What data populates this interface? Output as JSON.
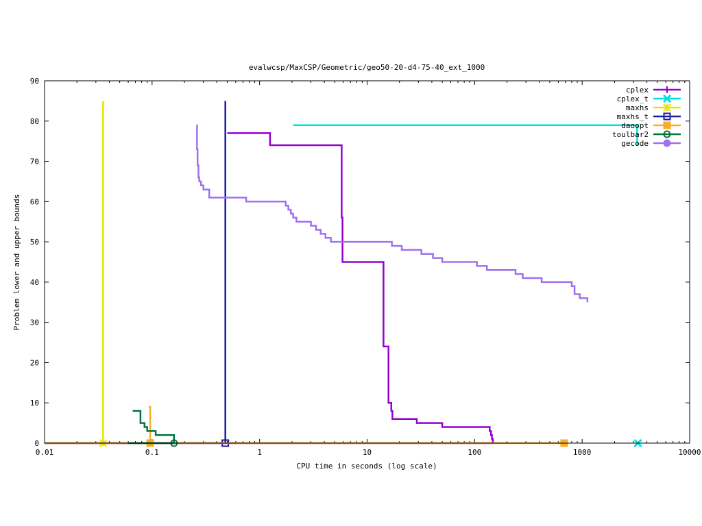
{
  "chart_data": {
    "type": "line",
    "title": "evalwcsp/MaxCSP/Geometric/geo50-20-d4-75-40_ext_1000",
    "xlabel": "CPU time in seconds (log scale)",
    "ylabel": "Problem lower and upper bounds",
    "x_scale": "log",
    "xlim": [
      0.01,
      10000
    ],
    "ylim": [
      0,
      90
    ],
    "x_ticks": [
      0.01,
      0.1,
      1,
      10,
      100,
      1000,
      10000
    ],
    "x_tick_labels": [
      "0.01",
      "0.1",
      "1",
      "10",
      "100",
      "1000",
      "10000"
    ],
    "y_ticks": [
      0,
      10,
      20,
      30,
      40,
      50,
      60,
      70,
      80,
      90
    ],
    "y_tick_labels": [
      "0",
      "10",
      "20",
      "30",
      "40",
      "50",
      "60",
      "70",
      "80",
      "90"
    ],
    "legend_position": "top-right",
    "series": [
      {
        "name": "cplex",
        "color": "#9400d3",
        "marker": "plus",
        "step": true,
        "upper": [
          [
            0.5,
            77
          ],
          [
            1.25,
            74
          ],
          [
            5.8,
            56
          ],
          [
            5.9,
            45
          ],
          [
            14.2,
            24
          ],
          [
            15.8,
            10
          ],
          [
            16.8,
            8
          ],
          [
            17.2,
            6
          ],
          [
            29,
            5
          ],
          [
            50,
            4
          ],
          [
            138,
            3
          ],
          [
            142,
            2
          ],
          [
            145,
            1
          ],
          [
            148,
            0
          ]
        ],
        "lower": [
          [
            0.01,
            0
          ],
          [
            148,
            0
          ]
        ],
        "markers": []
      },
      {
        "name": "cplex_t",
        "color": "#00e0e0",
        "marker": "cross",
        "step": true,
        "upper": [
          [
            2.05,
            79
          ],
          [
            3250,
            74
          ]
        ],
        "lower": [
          [
            3300,
            0
          ]
        ],
        "markers": [
          [
            3300,
            0
          ]
        ]
      },
      {
        "name": "maxhs",
        "color": "#e6e600",
        "marker": "star",
        "step": false,
        "upper": [
          [
            0.035,
            85
          ],
          [
            0.035,
            0
          ]
        ],
        "lower": [
          [
            0.01,
            0
          ],
          [
            0.035,
            0
          ]
        ],
        "markers": [
          [
            0.035,
            0
          ]
        ]
      },
      {
        "name": "maxhs_t",
        "color": "#1a1aa6",
        "marker": "box",
        "step": false,
        "upper": [
          [
            0.48,
            85
          ],
          [
            0.48,
            0
          ]
        ],
        "lower": [
          [
            0.01,
            0
          ],
          [
            0.48,
            0
          ]
        ],
        "markers": [
          [
            0.48,
            0
          ]
        ]
      },
      {
        "name": "daoopt",
        "color": "#f5b025",
        "marker": "filled-box",
        "step": true,
        "upper": [
          [
            0.093,
            9
          ],
          [
            0.096,
            0
          ]
        ],
        "lower": [
          [
            0.01,
            0
          ],
          [
            680,
            0
          ]
        ],
        "markers": [
          [
            0.096,
            0
          ],
          [
            680,
            0
          ]
        ]
      },
      {
        "name": "toulbar2",
        "color": "#00743f",
        "marker": "circle",
        "step": true,
        "upper": [
          [
            0.066,
            8
          ],
          [
            0.078,
            5
          ],
          [
            0.085,
            4
          ],
          [
            0.09,
            3
          ],
          [
            0.108,
            2
          ],
          [
            0.16,
            0
          ]
        ],
        "lower": [
          [
            0.06,
            0
          ],
          [
            0.16,
            0
          ]
        ],
        "markers": [
          [
            0.16,
            0
          ]
        ]
      },
      {
        "name": "gecode",
        "color": "#a070f0",
        "marker": "filled-circle",
        "step": true,
        "upper": [
          [
            0.26,
            79
          ],
          [
            0.262,
            73
          ],
          [
            0.265,
            69
          ],
          [
            0.27,
            66
          ],
          [
            0.275,
            65
          ],
          [
            0.285,
            64
          ],
          [
            0.3,
            63
          ],
          [
            0.34,
            61
          ],
          [
            0.75,
            60
          ],
          [
            1.75,
            59
          ],
          [
            1.85,
            58
          ],
          [
            1.95,
            57
          ],
          [
            2.05,
            56
          ],
          [
            2.2,
            55
          ],
          [
            3.0,
            54
          ],
          [
            3.35,
            53
          ],
          [
            3.7,
            52
          ],
          [
            4.1,
            51
          ],
          [
            4.6,
            50
          ],
          [
            17,
            49
          ],
          [
            21,
            48
          ],
          [
            32,
            47
          ],
          [
            41,
            46
          ],
          [
            50,
            45
          ],
          [
            105,
            44
          ],
          [
            130,
            43
          ],
          [
            240,
            42
          ],
          [
            280,
            41
          ],
          [
            420,
            40
          ],
          [
            800,
            39
          ],
          [
            850,
            37
          ],
          [
            950,
            36
          ],
          [
            1120,
            35
          ]
        ],
        "lower": [],
        "markers": []
      }
    ]
  }
}
